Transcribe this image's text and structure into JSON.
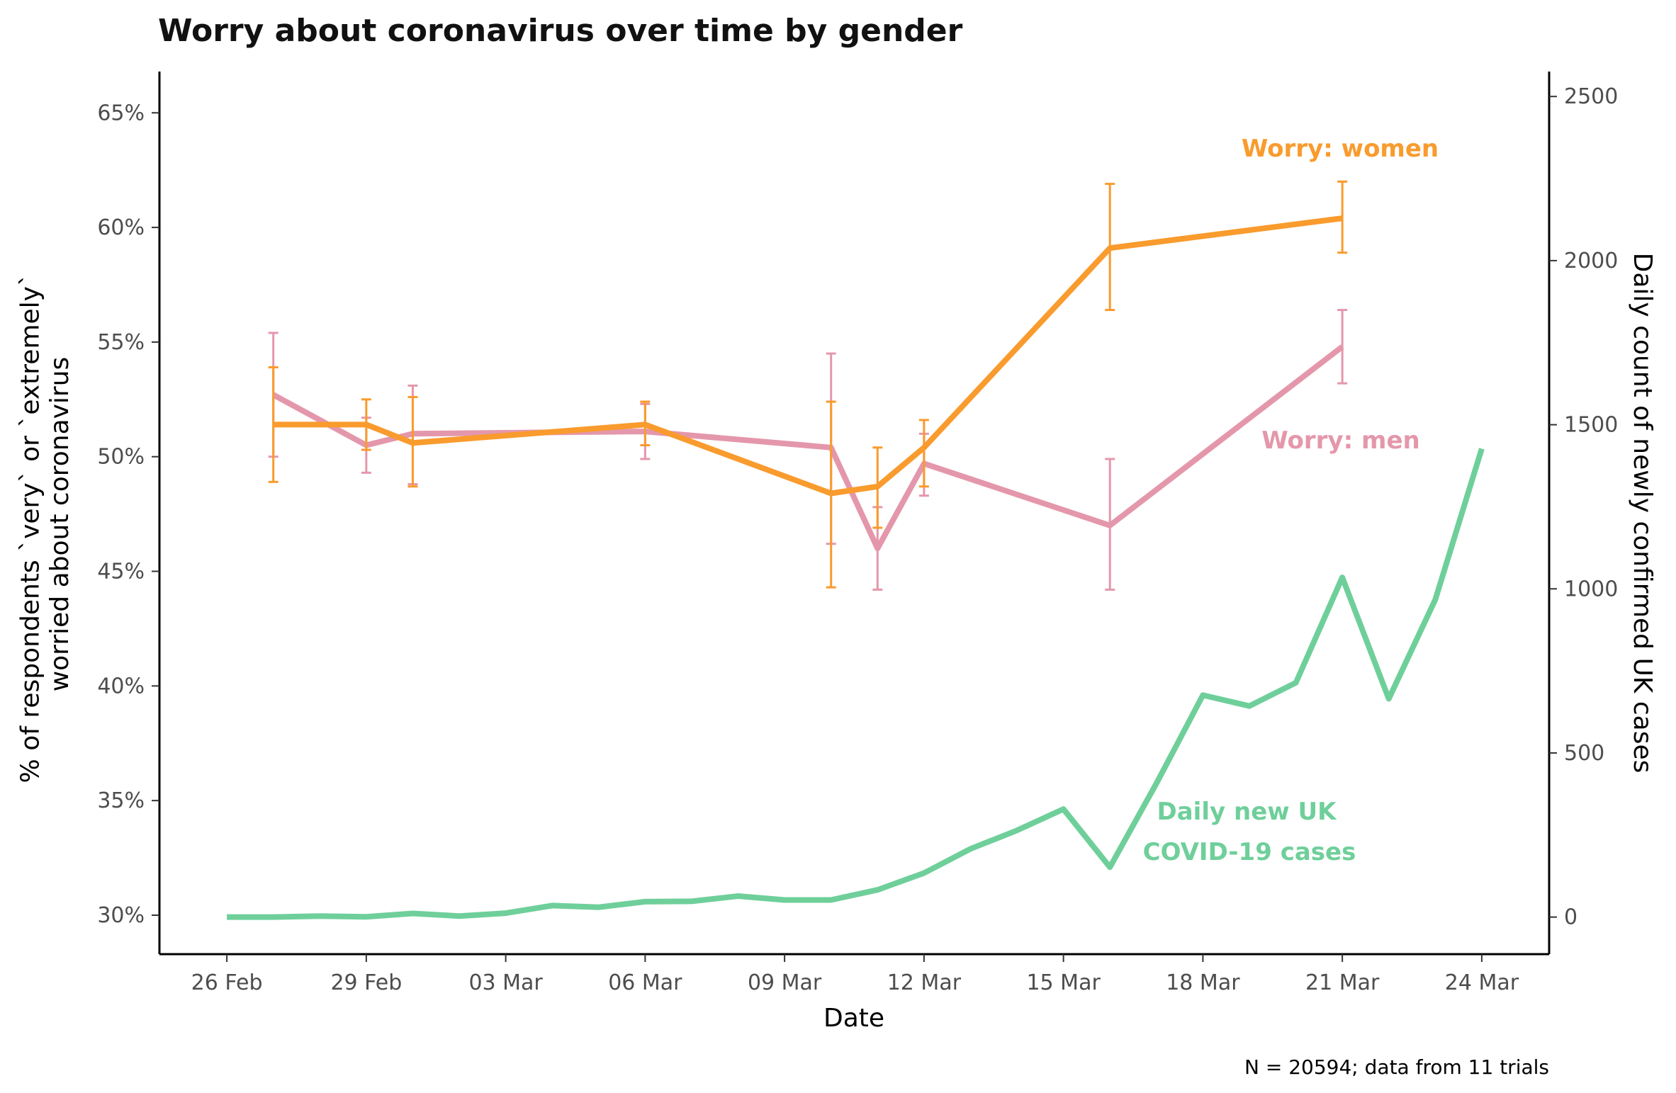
{
  "chart_data": {
    "type": "line",
    "title": "Worry about coronavirus over time by gender",
    "xlabel": "Date",
    "ylabel_left": "% of respondents `very` or `extremely`\nworried about coronavirus",
    "ylabel_right": "Daily count of newly confirmed UK cases",
    "caption": "N = 20594; data from 11 trials",
    "x_ticks": [
      "26 Feb",
      "29 Feb",
      "03 Mar",
      "06 Mar",
      "09 Mar",
      "12 Mar",
      "15 Mar",
      "18 Mar",
      "21 Mar",
      "24 Mar"
    ],
    "x_tick_days": [
      0,
      3,
      6,
      9,
      12,
      15,
      18,
      21,
      24,
      27
    ],
    "xlim_days": [
      -1.45,
      28.45
    ],
    "y_left_ticks": [
      "30%",
      "35%",
      "40%",
      "45%",
      "50%",
      "55%",
      "60%",
      "65%"
    ],
    "y_left_tick_values": [
      30,
      35,
      40,
      45,
      50,
      55,
      60,
      65
    ],
    "ylim_left": [
      28.3,
      66.8
    ],
    "y_right_ticks": [
      "0",
      "500",
      "1000",
      "1500",
      "2000",
      "2500"
    ],
    "y_right_tick_values": [
      0,
      500,
      1000,
      1500,
      2000,
      2500
    ],
    "ylim_right": [
      -113,
      2576
    ],
    "grid": false,
    "series": [
      {
        "name": "Worry: women",
        "color": "#F99B2D",
        "axis": "left",
        "x_days": [
          1,
          3,
          4,
          9,
          13,
          14,
          15,
          19,
          24
        ],
        "values": [
          51.4,
          51.4,
          50.6,
          51.4,
          48.4,
          48.7,
          50.4,
          59.1,
          60.4
        ],
        "err_low": [
          48.9,
          50.3,
          48.7,
          50.5,
          44.3,
          46.9,
          48.7,
          56.4,
          58.9
        ],
        "err_high": [
          53.9,
          52.5,
          52.6,
          52.4,
          52.4,
          50.4,
          51.6,
          61.9,
          62.0
        ]
      },
      {
        "name": "Worry: men",
        "color": "#E497AB",
        "axis": "left",
        "x_days": [
          1,
          3,
          4,
          9,
          13,
          14,
          15,
          19,
          24
        ],
        "values": [
          52.7,
          50.5,
          51.0,
          51.1,
          50.4,
          46.0,
          49.7,
          47.0,
          54.8
        ],
        "err_low": [
          50.0,
          49.3,
          48.8,
          49.9,
          46.2,
          44.2,
          48.3,
          44.2,
          53.2
        ],
        "err_high": [
          55.4,
          51.7,
          53.1,
          52.3,
          54.5,
          47.8,
          51.0,
          49.9,
          56.4
        ]
      },
      {
        "name": "Daily new UK COVID-19 cases",
        "color": "#6FCF9A",
        "axis": "right",
        "x_days": [
          0,
          1,
          2,
          3,
          4,
          5,
          6,
          7,
          8,
          9,
          10,
          11,
          12,
          13,
          14,
          15,
          16,
          17,
          18,
          19,
          20,
          21,
          22,
          23,
          24,
          25,
          26,
          27
        ],
        "values": [
          0,
          0,
          3,
          1,
          11,
          3,
          12,
          35,
          30,
          47,
          48,
          64,
          52,
          52,
          83,
          134,
          208,
          264,
          329,
          152,
          407,
          676,
          643,
          714,
          1035,
          665,
          967,
          1427
        ]
      }
    ],
    "annotations": [
      {
        "series": 0,
        "lines": [
          "Worry: women"
        ],
        "color": "#F99B2D"
      },
      {
        "series": 1,
        "lines": [
          "Worry: men"
        ],
        "color": "#E497AB"
      },
      {
        "series": 2,
        "lines": [
          "Daily new UK",
          "COVID-19 cases"
        ],
        "color": "#6FCF9A"
      }
    ]
  }
}
